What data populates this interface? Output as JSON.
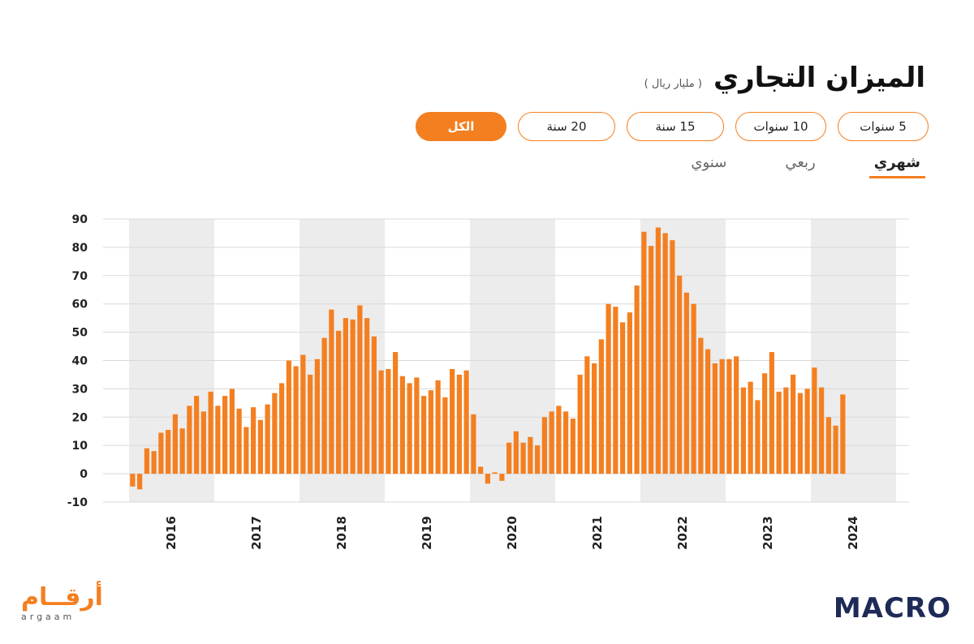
{
  "header": {
    "title": "الميزان التجاري",
    "subtitle": "( مليار ريال )"
  },
  "range_buttons": [
    {
      "label": "5 سنوات",
      "active": false
    },
    {
      "label": "10 سنوات",
      "active": false
    },
    {
      "label": "15 سنة",
      "active": false
    },
    {
      "label": "20 سنة",
      "active": false
    },
    {
      "label": "الكل",
      "active": true
    }
  ],
  "period_tabs": [
    {
      "label": "شهري",
      "active": true
    },
    {
      "label": "ربعي",
      "active": false
    },
    {
      "label": "سنوي",
      "active": false
    }
  ],
  "colors": {
    "bar": "#f47f20",
    "band": "#ececec",
    "grid": "#d9d9d9",
    "brand_macro": "#1e2a57"
  },
  "logos": {
    "left_ar": "أرقــام",
    "left_en": "argaam",
    "right": "MACRO"
  },
  "chart_data": {
    "type": "bar",
    "title": "الميزان التجاري",
    "ylabel": "",
    "xlabel": "",
    "ylim": [
      -10,
      90
    ],
    "yticks": [
      -10,
      0,
      10,
      20,
      30,
      40,
      50,
      60,
      70,
      80,
      90
    ],
    "grid": true,
    "year_labels": [
      "2016",
      "2017",
      "2018",
      "2019",
      "2020",
      "2021",
      "2022",
      "2023",
      "2024"
    ],
    "series": [
      {
        "name": "",
        "values": [
          -4.5,
          -5.5,
          9,
          8,
          14.5,
          15.5,
          21,
          16,
          24,
          27.5,
          22,
          29,
          24,
          27.5,
          30,
          23,
          16.5,
          23.5,
          19,
          24.5,
          28.5,
          32,
          40,
          38,
          42,
          35,
          40.5,
          48,
          58,
          50.5,
          55,
          54.5,
          59.5,
          55,
          48.5,
          36.5,
          37,
          43,
          34.5,
          32,
          34,
          27.5,
          29.5,
          33,
          27,
          37,
          35,
          36.5,
          21,
          2.5,
          -3.5,
          0.5,
          -2.5,
          11,
          15,
          11,
          13,
          10,
          20,
          22,
          24,
          22,
          19.5,
          35,
          41.5,
          39,
          47.5,
          60,
          59,
          53.5,
          57,
          66.5,
          85.5,
          80.5,
          87,
          85,
          82.5,
          70,
          64,
          60,
          48,
          44,
          39,
          40.5,
          40.5,
          41.5,
          30.5,
          32.5,
          26,
          35.5,
          43,
          29,
          30.5,
          35,
          28.5,
          30,
          37.5,
          30.5,
          20,
          17,
          28
        ]
      }
    ]
  }
}
